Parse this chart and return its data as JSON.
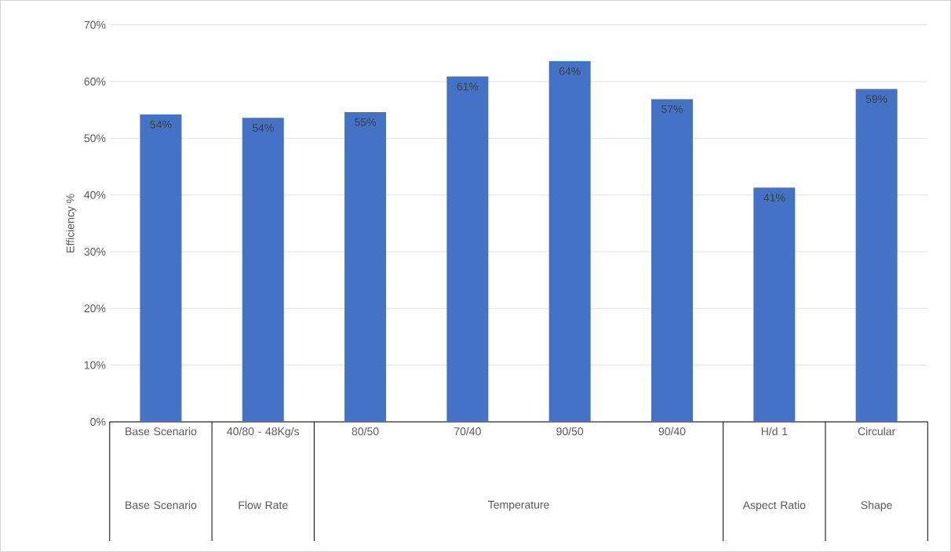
{
  "chart_data": {
    "type": "bar",
    "ylabel": "Efficiency %",
    "categories": [
      "Base Scenario",
      "40/80 - 48Kg/s",
      "80/50",
      "70/40",
      "90/50",
      "90/40",
      "H/d 1",
      "Circular"
    ],
    "values": [
      54.2,
      53.6,
      54.6,
      60.9,
      63.6,
      56.9,
      41.3,
      58.7
    ],
    "value_labels": [
      "54%",
      "54%",
      "55%",
      "61%",
      "64%",
      "57%",
      "41%",
      "59%"
    ],
    "color": "#4472c4",
    "ylim": [
      0,
      70
    ],
    "yticks": [
      {
        "value": 0,
        "label": "0%"
      },
      {
        "value": 10,
        "label": "10%"
      },
      {
        "value": 20,
        "label": "20%"
      },
      {
        "value": 30,
        "label": "30%"
      },
      {
        "value": 40,
        "label": "40%"
      },
      {
        "value": 50,
        "label": "50%"
      },
      {
        "value": 60,
        "label": "60%"
      },
      {
        "value": 70,
        "label": "70%"
      }
    ],
    "grid": "y",
    "annotations": [
      "Base Scenario",
      "Flow Rate",
      "Temperature",
      "Aspect Ratio",
      "Shape"
    ]
  }
}
